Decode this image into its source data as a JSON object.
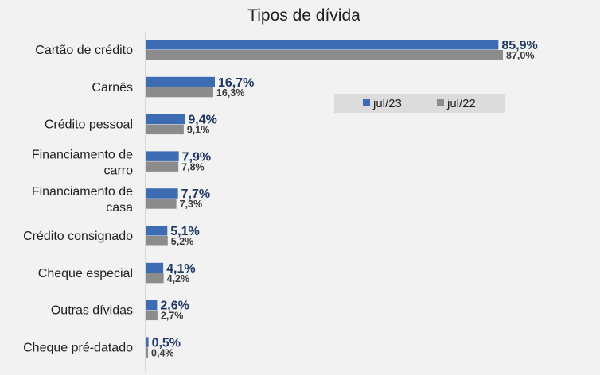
{
  "chart_data": {
    "type": "bar",
    "orientation": "horizontal",
    "title": "Tipos de dívida",
    "categories": [
      [
        "Cartão de crédito"
      ],
      [
        "Carnês"
      ],
      [
        "Crédito pessoal"
      ],
      [
        "Financiamento de",
        "carro"
      ],
      [
        "Financiamento de",
        "casa"
      ],
      [
        "Crédito consignado"
      ],
      [
        "Cheque especial"
      ],
      [
        "Outras dívidas"
      ],
      [
        "Cheque pré-datado"
      ]
    ],
    "series": [
      {
        "name": "jul/23",
        "color": "#3d6cb3",
        "values": [
          85.9,
          16.7,
          9.4,
          7.9,
          7.7,
          5.1,
          4.1,
          2.6,
          0.5
        ],
        "labels": [
          "85,9%",
          "16,7%",
          "9,4%",
          "7,9%",
          "7,7%",
          "5,1%",
          "4,1%",
          "2,6%",
          "0,5%"
        ]
      },
      {
        "name": "jul/22",
        "color": "#8c8c8c",
        "values": [
          87.0,
          16.3,
          9.1,
          7.8,
          7.3,
          5.2,
          4.2,
          2.7,
          0.4
        ],
        "labels": [
          "87,0%",
          "16,3%",
          "9,1%",
          "7,8%",
          "7,3%",
          "5,2%",
          "4,2%",
          "2,7%",
          "0,4%"
        ]
      }
    ],
    "xlim": [
      0,
      100
    ],
    "legend": "top-right"
  }
}
